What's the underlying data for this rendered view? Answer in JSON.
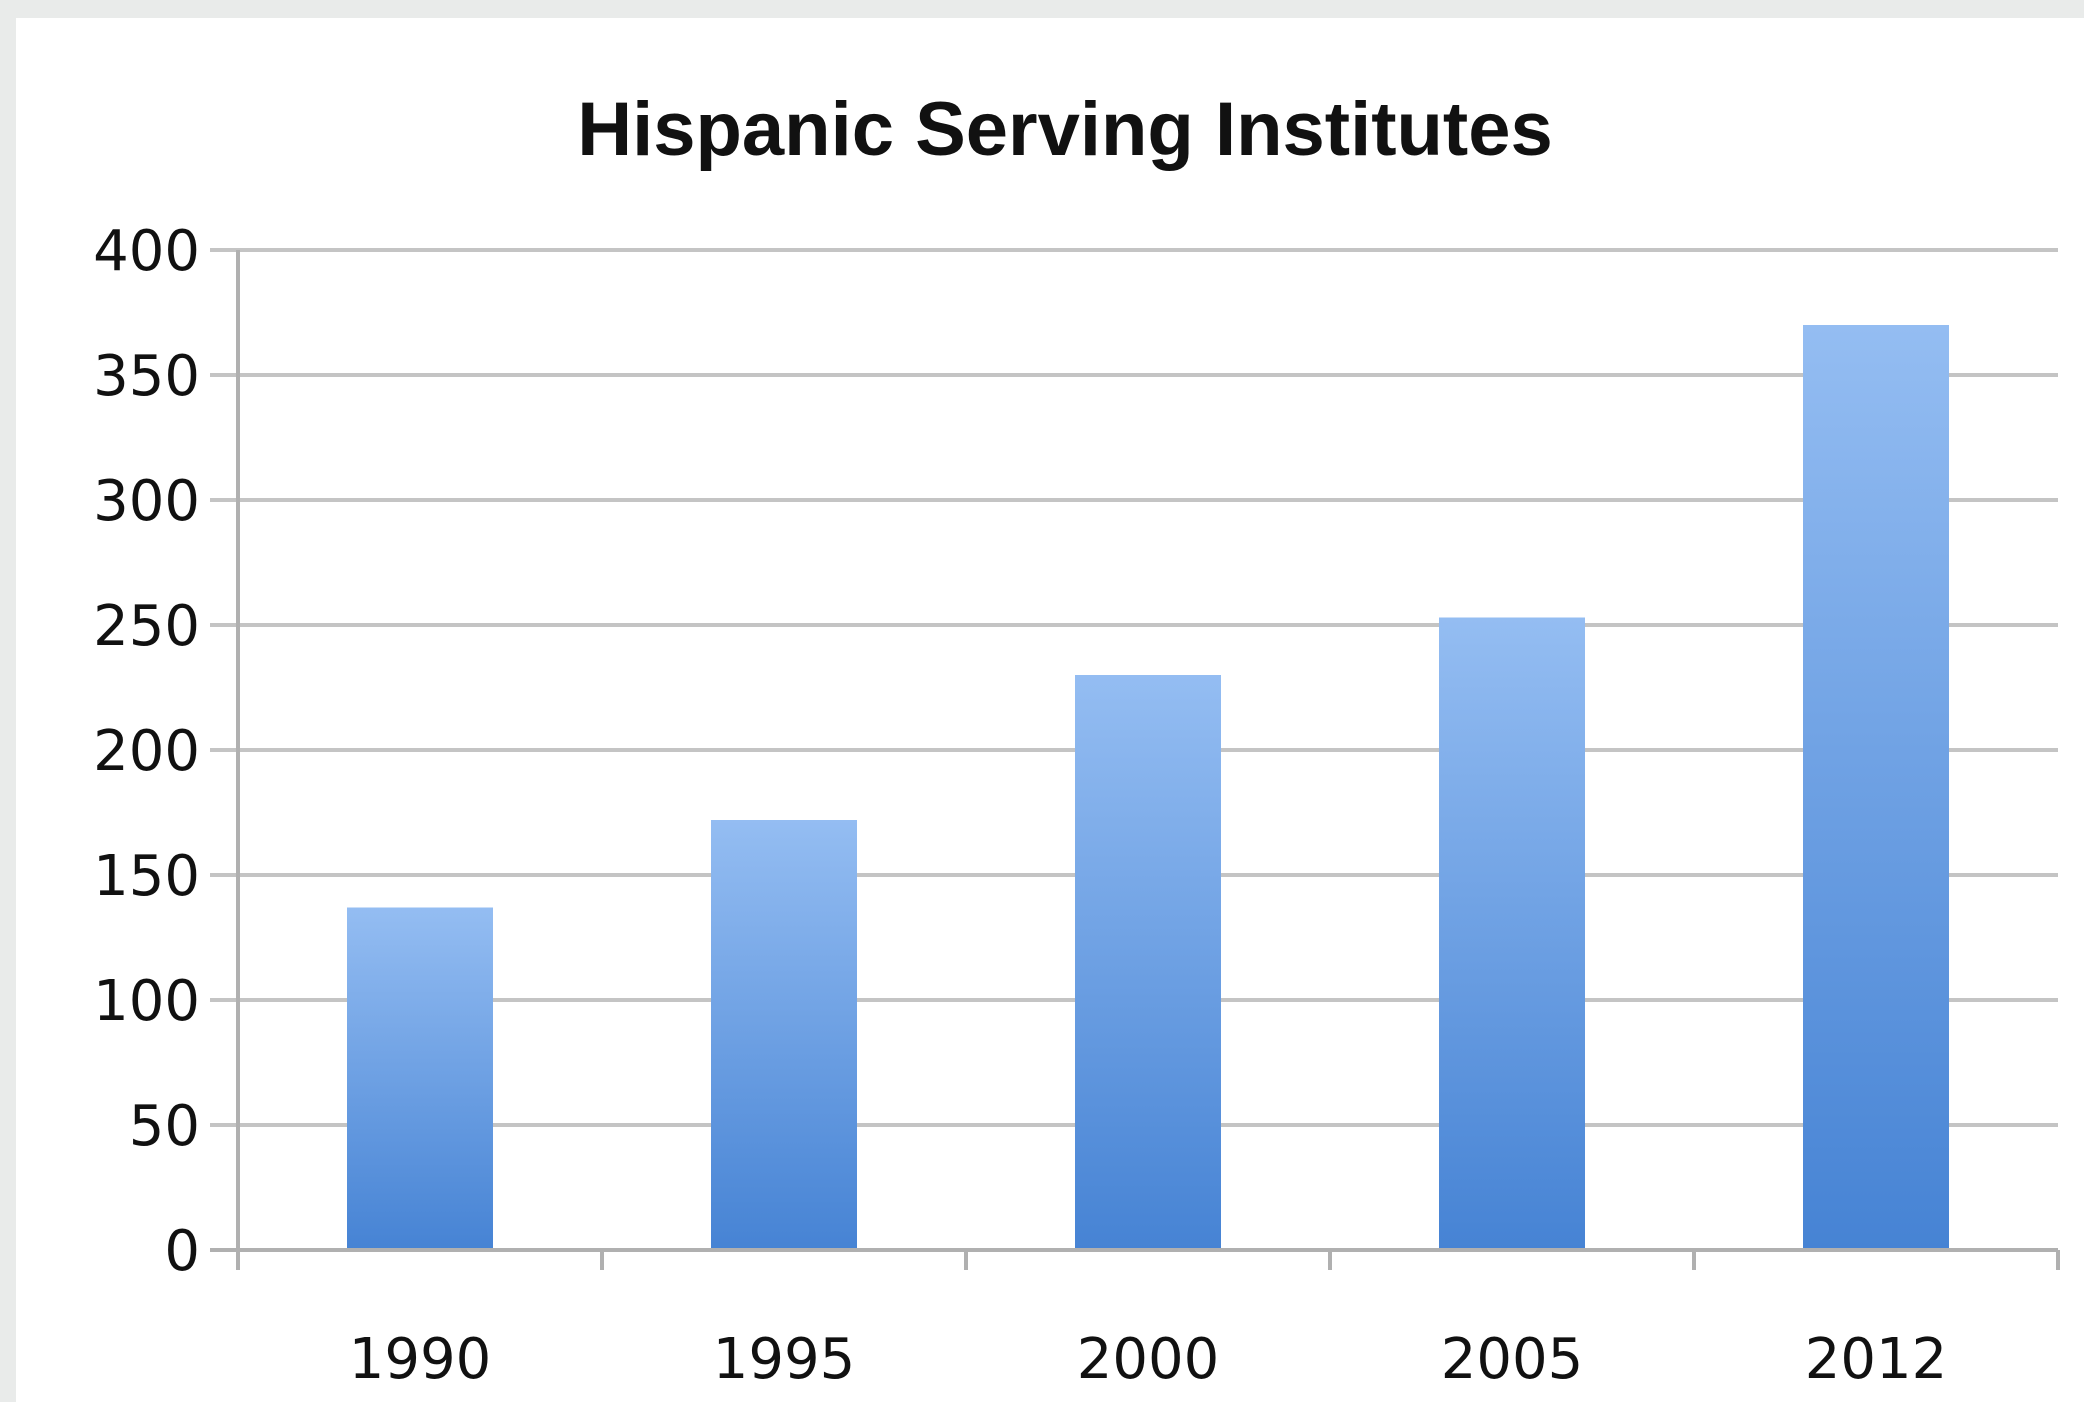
{
  "chart_data": {
    "type": "bar",
    "title": "Hispanic Serving Institutes",
    "xlabel": "",
    "ylabel": "",
    "categories": [
      "1990",
      "1995",
      "2000",
      "2005",
      "2012"
    ],
    "values": [
      137,
      172,
      230,
      253,
      370
    ],
    "ylim": [
      0,
      400
    ],
    "yticks": [
      0,
      50,
      100,
      150,
      200,
      250,
      300,
      350,
      400
    ],
    "grid": true,
    "legend": "none",
    "colors": {
      "bar_top": "#94bdf2",
      "bar_bottom": "#4683d4",
      "grid": "#c4c4c4",
      "axis": "#b0b0b0",
      "background": "#ffffff",
      "frame": "#e9ebea"
    }
  }
}
